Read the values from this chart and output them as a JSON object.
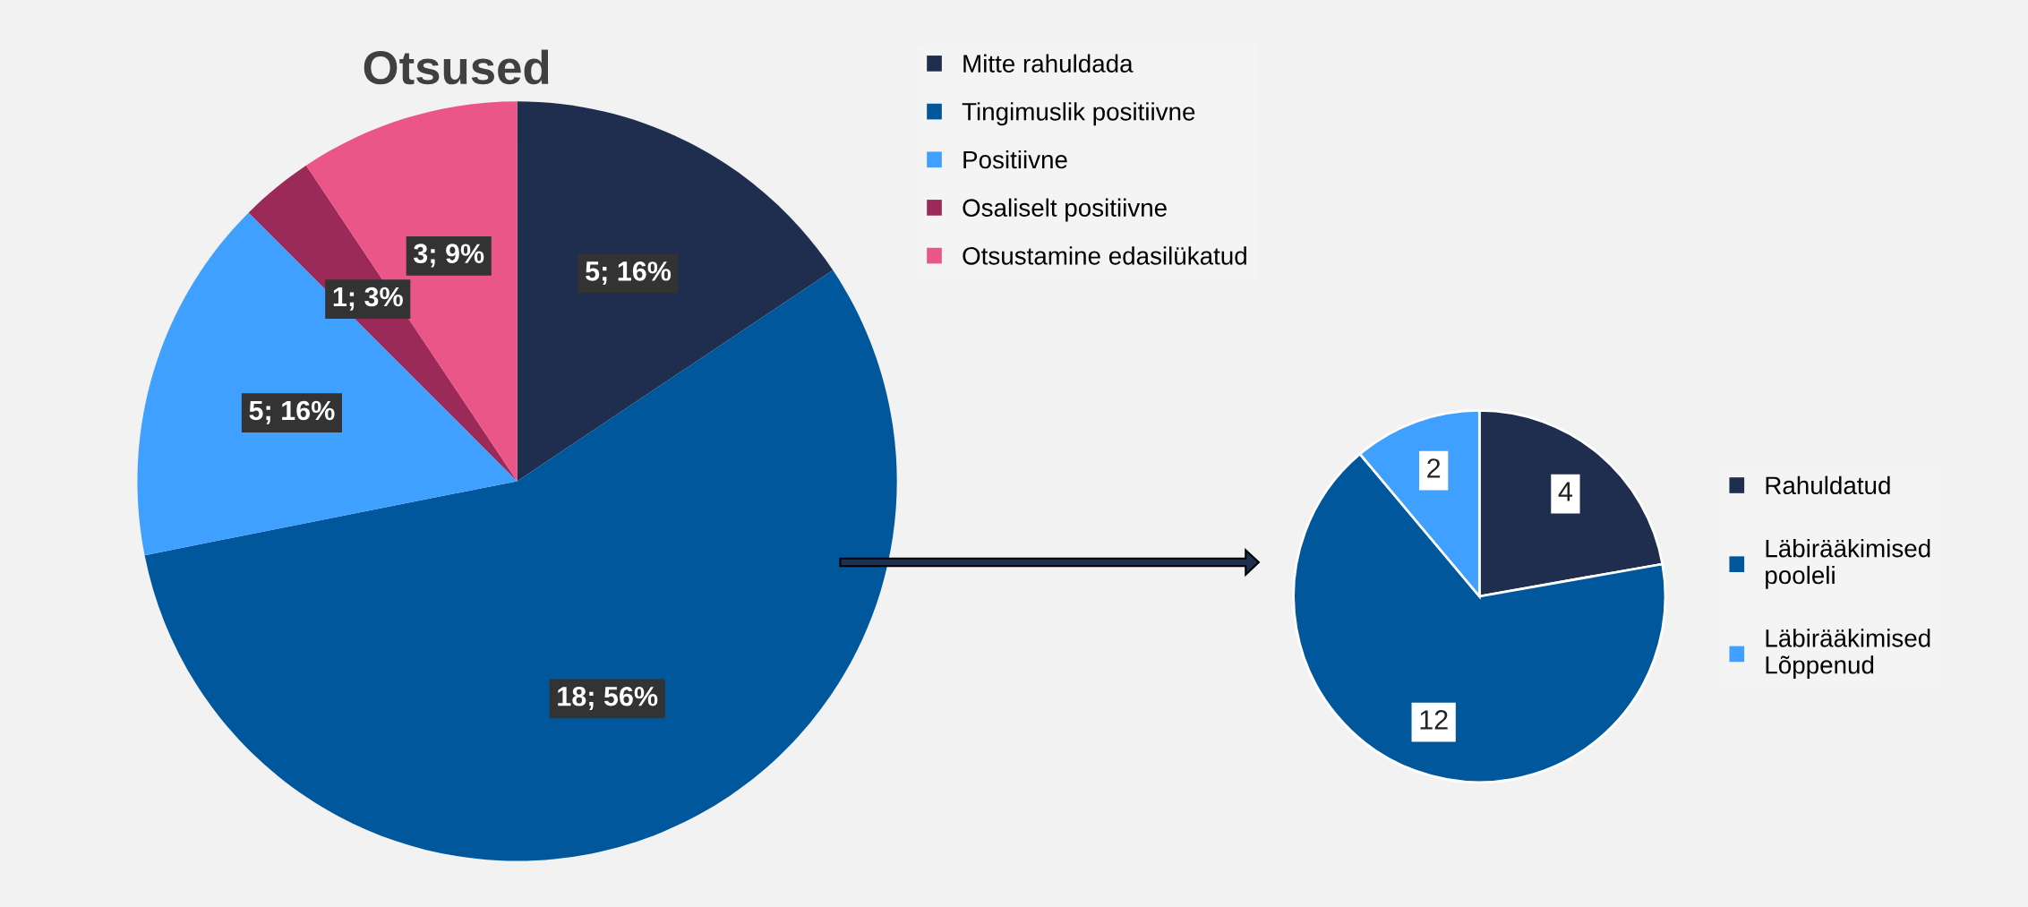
{
  "chart_data": [
    {
      "type": "pie",
      "title": "Otsused",
      "categories": [
        "Mitte rahuldada",
        "Tingimuslik positiivne",
        "Positiivne",
        "Osaliselt positiivne",
        "Otsustamine edasilükatud"
      ],
      "values": [
        5,
        18,
        5,
        1,
        3
      ],
      "value_labels": [
        "5; 16%",
        "18; 56%",
        "5; 16%",
        "1; 3%",
        "3; 9%"
      ],
      "colors": [
        "#1f2d4e",
        "#01579b",
        "#3fa0ff",
        "#9b2a59",
        "#eb5688"
      ],
      "legend": "top right"
    },
    {
      "type": "pie",
      "categories": [
        "Rahuldatud",
        "Läbirääkimised pooleli",
        "Läbirääkimised Lõppenud"
      ],
      "values": [
        4,
        12,
        2
      ],
      "data_labels": true,
      "colors": [
        "#1f2d4e",
        "#01579b",
        "#3fa0ff"
      ],
      "legend": "right"
    }
  ]
}
